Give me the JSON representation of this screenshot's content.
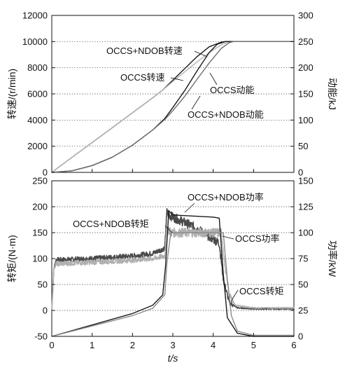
{
  "chart_data": [
    {
      "type": "line",
      "panel": "top",
      "x_range": [
        0,
        6
      ],
      "ylabel_left": "转速/(r/min)",
      "ylabel_right": "动能/kJ",
      "ylim_left": [
        0,
        12000
      ],
      "ylim_right": [
        0,
        300
      ],
      "yticks_left": [
        "0",
        "2000",
        "4000",
        "6000",
        "8000",
        "10000",
        "12000"
      ],
      "yticks_right": [
        "0",
        "50",
        "100",
        "150",
        "200",
        "250",
        "300"
      ],
      "grid": "horizontal dotted",
      "series": [
        {
          "name": "OCCS+NDOB转速",
          "axis": "left",
          "color": "#1a1a1a",
          "x": [
            0,
            0.5,
            1,
            1.5,
            2,
            2.5,
            2.75,
            3.0,
            3.3,
            3.6,
            3.9,
            4.2,
            4.3,
            5.0,
            6.0
          ],
          "y": [
            0,
            1150,
            2280,
            3420,
            4560,
            5700,
            6300,
            7050,
            7950,
            8850,
            9600,
            9960,
            10000,
            10000,
            10000
          ]
        },
        {
          "name": "OCCS转速",
          "axis": "left",
          "color": "#b4b4b4",
          "x": [
            0,
            0.5,
            1,
            1.5,
            2,
            2.5,
            2.75,
            3.0,
            3.3,
            3.6,
            3.9,
            4.2,
            4.35,
            4.5,
            5.0,
            6.0
          ],
          "y": [
            0,
            1150,
            2280,
            3420,
            4560,
            5700,
            6300,
            6950,
            7700,
            8450,
            9150,
            9750,
            9950,
            10000,
            10000,
            10000
          ]
        },
        {
          "name": "OCCS+NDOB动能",
          "axis": "right",
          "color": "#1a1a1a",
          "x": [
            0,
            0.5,
            1,
            1.5,
            2,
            2.5,
            2.8,
            3.0,
            3.3,
            3.6,
            3.9,
            4.1,
            4.3,
            5.0,
            6.0
          ],
          "y": [
            0,
            3,
            13,
            29,
            52,
            81,
            103,
            124,
            157,
            194,
            229,
            245,
            250,
            250,
            250
          ]
        },
        {
          "name": "OCCS动能",
          "axis": "right",
          "color": "#6e6e6e",
          "x": [
            0,
            0.5,
            1,
            1.5,
            2,
            2.5,
            2.8,
            3.0,
            3.3,
            3.6,
            3.9,
            4.2,
            4.4,
            4.5,
            5.0,
            6.0
          ],
          "y": [
            0,
            3,
            13,
            29,
            52,
            81,
            101,
            118,
            146,
            178,
            209,
            237,
            248,
            250,
            250,
            250
          ]
        }
      ],
      "annotations": [
        "OCCS+NDOB转速",
        "OCCS转速",
        "OCCS动能",
        "OCCS+NDOB动能"
      ]
    },
    {
      "type": "line",
      "panel": "bottom",
      "xlabel": "t/s",
      "xlim": [
        0,
        6
      ],
      "xticks": [
        "0",
        "1",
        "2",
        "3",
        "4",
        "5",
        "6"
      ],
      "ylabel_left": "转矩/(N·m)",
      "ylabel_right": "功率/kW",
      "ylim_left": [
        -50,
        250
      ],
      "ylim_right": [
        0,
        150
      ],
      "yticks_left": [
        "-50",
        "0",
        "50",
        "100",
        "150",
        "200",
        "250"
      ],
      "yticks_right": [
        "0",
        "25",
        "50",
        "75",
        "100",
        "125",
        "150"
      ],
      "grid": "horizontal dotted",
      "series": [
        {
          "name": "OCCS+NDOB转矩",
          "axis": "left",
          "color": "#4a4a4a",
          "noisy": true,
          "x": [
            0,
            0.05,
            0.1,
            1,
            2,
            2.5,
            2.8,
            2.85,
            2.95,
            3.5,
            4.0,
            4.15,
            4.25,
            4.4,
            4.6,
            5.0,
            6.0
          ],
          "y": [
            0,
            80,
            97,
            100,
            105,
            110,
            120,
            190,
            182,
            162,
            138,
            130,
            60,
            15,
            5,
            3,
            3
          ]
        },
        {
          "name": "OCCS转矩",
          "axis": "left",
          "color": "#b0b0b0",
          "noisy": true,
          "x": [
            0,
            0.05,
            0.1,
            1,
            2,
            2.5,
            2.8,
            2.85,
            2.95,
            3.5,
            4.0,
            4.2,
            4.3,
            4.4,
            4.55,
            5.0,
            6.0
          ],
          "y": [
            0,
            80,
            90,
            93,
            97,
            100,
            105,
            160,
            150,
            150,
            150,
            150,
            80,
            30,
            10,
            5,
            5
          ]
        },
        {
          "name": "OCCS+NDOB功率",
          "axis": "right",
          "color": "#1a1a1a",
          "noisy": false,
          "x": [
            0,
            1,
            2,
            2.5,
            2.75,
            2.82,
            2.9,
            3.0,
            3.5,
            4.0,
            4.15,
            4.25,
            4.35,
            4.6,
            5.0,
            6.0
          ],
          "y": [
            0,
            11,
            22,
            30,
            40,
            68,
            121,
            117,
            116,
            115,
            114,
            60,
            18,
            3,
            0,
            0
          ]
        },
        {
          "name": "OCCS功率",
          "axis": "right",
          "color": "#8a8a8a",
          "noisy": false,
          "x": [
            0,
            1,
            2,
            2.5,
            2.8,
            2.85,
            2.95,
            3.5,
            4.0,
            4.25,
            4.35,
            4.45,
            4.6,
            5.0,
            6.0
          ],
          "y": [
            0,
            10,
            20,
            27,
            40,
            70,
            100,
            100,
            100,
            100,
            55,
            20,
            5,
            1,
            1
          ]
        }
      ],
      "annotations": [
        "OCCS+NDOB功率",
        "OCCS+NDOB转矩",
        "OCCS功率",
        "OCCS转矩"
      ]
    }
  ]
}
